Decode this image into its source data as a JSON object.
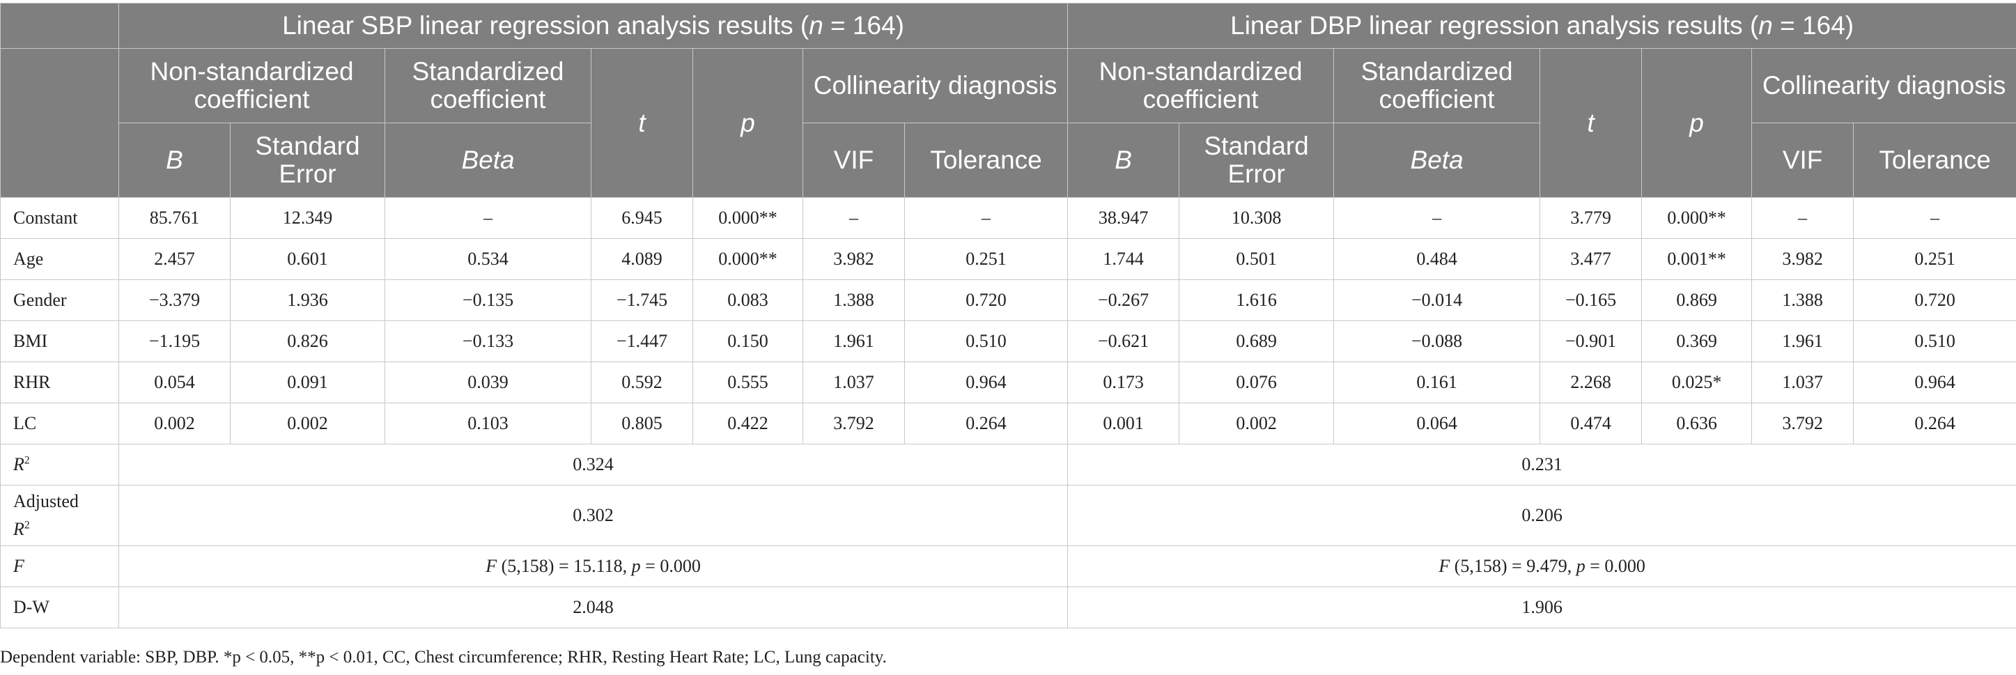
{
  "header": {
    "sbp_title_prefix": "Linear SBP linear regression analysis results (",
    "dbp_title_prefix": "Linear DBP linear regression analysis results (",
    "title_n_symbol": "n",
    "title_n_value": " = 164)",
    "non_standardized": "Non-standardized coefficient",
    "standardized": "Standardized coefficient",
    "t": "t",
    "p": "p",
    "collinearity": "Collinearity diagnosis",
    "b": "B",
    "std_error": "Standard Error",
    "beta": "Beta",
    "vif": "VIF",
    "tolerance": "Tolerance"
  },
  "rows": [
    {
      "label": "Constant",
      "sbp": [
        "85.761",
        "12.349",
        "–",
        "6.945",
        "0.000**",
        "–",
        "–"
      ],
      "dbp": [
        "38.947",
        "10.308",
        "–",
        "3.779",
        "0.000**",
        "–",
        "–"
      ]
    },
    {
      "label": "Age",
      "sbp": [
        "2.457",
        "0.601",
        "0.534",
        "4.089",
        "0.000**",
        "3.982",
        "0.251"
      ],
      "dbp": [
        "1.744",
        "0.501",
        "0.484",
        "3.477",
        "0.001**",
        "3.982",
        "0.251"
      ]
    },
    {
      "label": "Gender",
      "sbp": [
        "−3.379",
        "1.936",
        "−0.135",
        "−1.745",
        "0.083",
        "1.388",
        "0.720"
      ],
      "dbp": [
        "−0.267",
        "1.616",
        "−0.014",
        "−0.165",
        "0.869",
        "1.388",
        "0.720"
      ]
    },
    {
      "label": "BMI",
      "sbp": [
        "−1.195",
        "0.826",
        "−0.133",
        "−1.447",
        "0.150",
        "1.961",
        "0.510"
      ],
      "dbp": [
        "−0.621",
        "0.689",
        "−0.088",
        "−0.901",
        "0.369",
        "1.961",
        "0.510"
      ]
    },
    {
      "label": "RHR",
      "sbp": [
        "0.054",
        "0.091",
        "0.039",
        "0.592",
        "0.555",
        "1.037",
        "0.964"
      ],
      "dbp": [
        "0.173",
        "0.076",
        "0.161",
        "2.268",
        "0.025*",
        "1.037",
        "0.964"
      ]
    },
    {
      "label": "LC",
      "sbp": [
        "0.002",
        "0.002",
        "0.103",
        "0.805",
        "0.422",
        "3.792",
        "0.264"
      ],
      "dbp": [
        "0.001",
        "0.002",
        "0.064",
        "0.474",
        "0.636",
        "3.792",
        "0.264"
      ]
    }
  ],
  "summary": {
    "r2_symbol": "R",
    "r2_exp": "2",
    "r2_sbp": "0.324",
    "r2_dbp": "0.231",
    "adj_prefix": "Adjusted",
    "adj_r2_sbp": "0.302",
    "adj_r2_dbp": "0.206",
    "f_symbol": "F",
    "f_sbp_rest": " (5,158) = 15.118, ",
    "f_dbp_rest": " (5,158) = 9.479, ",
    "f_p_symbol": "p",
    "f_p_value": " = 0.000",
    "dw_label": "D-W",
    "dw_sbp": "2.048",
    "dw_dbp": "1.906"
  },
  "footnote": "Dependent variable: SBP, DBP. *p < 0.05, **p < 0.01, CC, Chest circumference; RHR, Resting Heart Rate; LC, Lung capacity."
}
